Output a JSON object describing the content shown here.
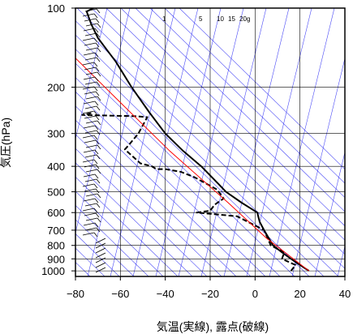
{
  "chart_data": {
    "type": "line",
    "title": "",
    "xlabel": "気温(実線), 露点(破線)",
    "ylabel": "気圧(hPa)",
    "xlim": [
      -80,
      40
    ],
    "ylim": [
      1050,
      100
    ],
    "y_scale": "log",
    "x_ticks": [
      -80,
      -60,
      -40,
      -20,
      0,
      20,
      40
    ],
    "y_ticks": [
      100,
      200,
      300,
      400,
      500,
      600,
      700,
      800,
      900,
      1000
    ],
    "mixing_ratio_labels": [
      "1",
      "5",
      "10",
      "15",
      "20",
      "g"
    ],
    "series": [
      {
        "style": "solid",
        "color": "#000000",
        "points": [
          {
            "t": 24,
            "p": 1000
          },
          {
            "t": 20,
            "p": 950
          },
          {
            "t": 16,
            "p": 900
          },
          {
            "t": 12,
            "p": 850
          },
          {
            "t": 8,
            "p": 800
          },
          {
            "t": 4,
            "p": 700
          },
          {
            "t": 2,
            "p": 650
          },
          {
            "t": 1,
            "p": 600
          },
          {
            "t": -6,
            "p": 550
          },
          {
            "t": -13,
            "p": 500
          },
          {
            "t": -16,
            "p": 470
          },
          {
            "t": -24,
            "p": 400
          },
          {
            "t": -32,
            "p": 350
          },
          {
            "t": -40,
            "p": 300
          },
          {
            "t": -47,
            "p": 250
          },
          {
            "t": -55,
            "p": 200
          },
          {
            "t": -62,
            "p": 160
          },
          {
            "t": -70,
            "p": 130
          },
          {
            "t": -73,
            "p": 115
          },
          {
            "t": -75,
            "p": 103
          },
          {
            "t": -72,
            "p": 100
          }
        ]
      },
      {
        "style": "dashed",
        "color": "#000000",
        "points": [
          {
            "t": 16,
            "p": 1000
          },
          {
            "t": 18,
            "p": 950
          },
          {
            "t": 12,
            "p": 900
          },
          {
            "t": 13,
            "p": 850
          },
          {
            "t": 7,
            "p": 800
          },
          {
            "t": 4,
            "p": 700
          },
          {
            "t": -8,
            "p": 620
          },
          {
            "t": -26,
            "p": 600
          },
          {
            "t": -20,
            "p": 590
          },
          {
            "t": -18,
            "p": 560
          },
          {
            "t": -14,
            "p": 530
          },
          {
            "t": -17,
            "p": 490
          },
          {
            "t": -27,
            "p": 440
          },
          {
            "t": -33,
            "p": 420
          },
          {
            "t": -40,
            "p": 410
          },
          {
            "t": -44,
            "p": 410
          },
          {
            "t": -46,
            "p": 400
          },
          {
            "t": -51,
            "p": 390
          },
          {
            "t": -58,
            "p": 345
          },
          {
            "t": -56,
            "p": 330
          },
          {
            "t": -52,
            "p": 300
          },
          {
            "t": -48,
            "p": 260
          },
          {
            "t": -53,
            "p": 258
          },
          {
            "t": -77,
            "p": 255
          },
          {
            "t": -72,
            "p": 250
          }
        ]
      },
      {
        "style": "solid",
        "color": "#ff0000",
        "points": [
          {
            "t": 24,
            "p": 1000
          },
          {
            "t": 5,
            "p": 750
          },
          {
            "t": -12,
            "p": 550
          },
          {
            "t": -38,
            "p": 350
          },
          {
            "t": -62,
            "p": 220
          },
          {
            "t": -80,
            "p": 155
          }
        ]
      }
    ]
  }
}
